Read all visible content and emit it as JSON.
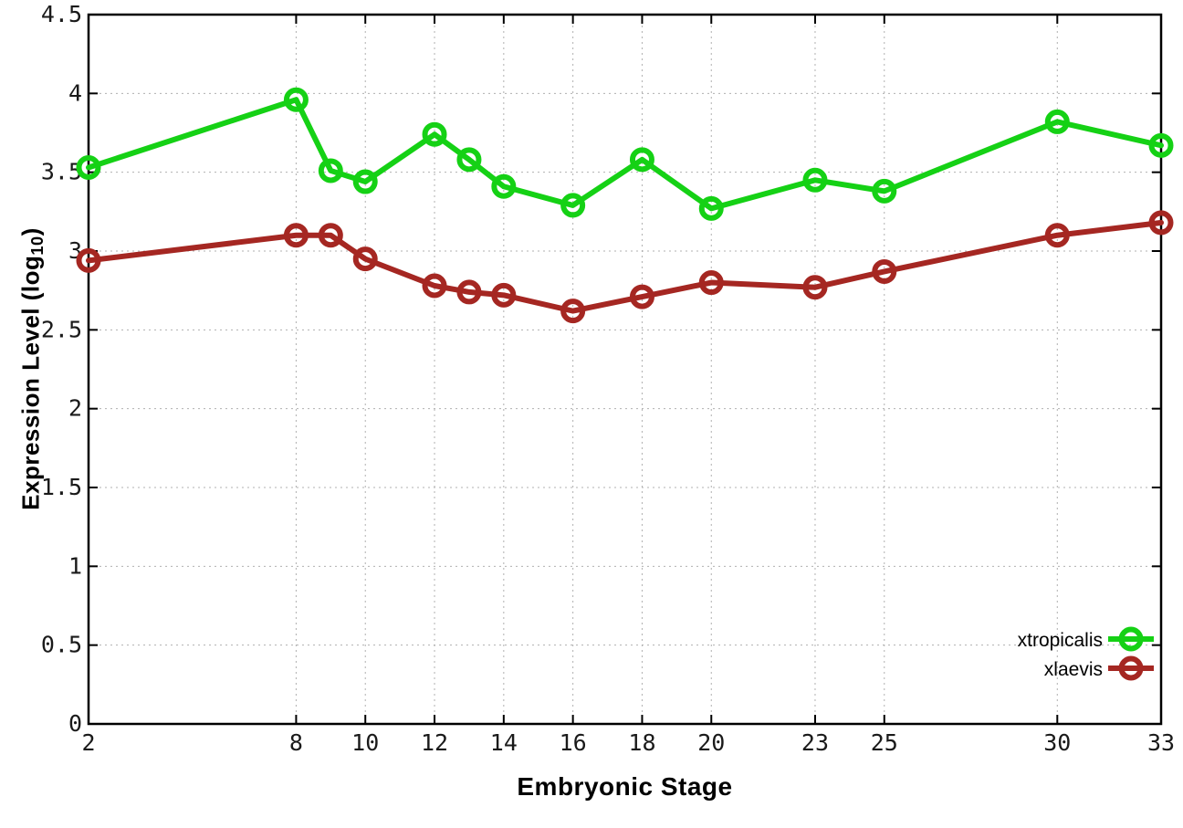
{
  "chart_data": {
    "type": "line",
    "title": "",
    "xlabel": "Embryonic Stage",
    "ylabel_pre": "Expression Level (log",
    "ylabel_sub": "10",
    "ylabel_post": ")",
    "xlim": [
      2,
      33
    ],
    "ylim": [
      0,
      4.5
    ],
    "grid": "dotted",
    "legend_position": "bottom-right",
    "marker": "open-circle",
    "x_ticks": [
      {
        "label": "2",
        "value": 2
      },
      {
        "label": "8",
        "value": 8
      },
      {
        "label": "10",
        "value": 10
      },
      {
        "label": "12",
        "value": 12
      },
      {
        "label": "14",
        "value": 14
      },
      {
        "label": "16",
        "value": 16
      },
      {
        "label": "18",
        "value": 18
      },
      {
        "label": "20",
        "value": 20
      },
      {
        "label": "23",
        "value": 23
      },
      {
        "label": "25",
        "value": 25
      },
      {
        "label": "30",
        "value": 30
      },
      {
        "label": "33",
        "value": 33
      }
    ],
    "y_ticks": [
      {
        "label": "0",
        "value": 0
      },
      {
        "label": "0.5",
        "value": 0.5
      },
      {
        "label": "1",
        "value": 1
      },
      {
        "label": "1.5",
        "value": 1.5
      },
      {
        "label": "2",
        "value": 2
      },
      {
        "label": "2.5",
        "value": 2.5
      },
      {
        "label": "3",
        "value": 3
      },
      {
        "label": "3.5",
        "value": 3.5
      },
      {
        "label": "4",
        "value": 4
      },
      {
        "label": "4.5",
        "value": 4.5
      }
    ],
    "x": [
      2,
      8,
      9,
      10,
      12,
      13,
      14,
      16,
      18,
      20,
      23,
      25,
      30,
      33
    ],
    "series": [
      {
        "name": "xtropicalis",
        "color": "#15d115",
        "values": [
          3.53,
          3.96,
          3.51,
          3.44,
          3.74,
          3.58,
          3.41,
          3.29,
          3.58,
          3.27,
          3.45,
          3.38,
          3.82,
          3.67
        ]
      },
      {
        "name": "xlaevis",
        "color": "#a52722",
        "values": [
          2.94,
          3.1,
          3.1,
          2.95,
          2.78,
          2.74,
          2.72,
          2.62,
          2.71,
          2.8,
          2.77,
          2.87,
          3.1,
          3.18
        ]
      }
    ],
    "colors": {
      "border": "#000000",
      "grid": "#b0b0b0",
      "background": "#ffffff",
      "tick_text": "#1a1a1a"
    }
  }
}
